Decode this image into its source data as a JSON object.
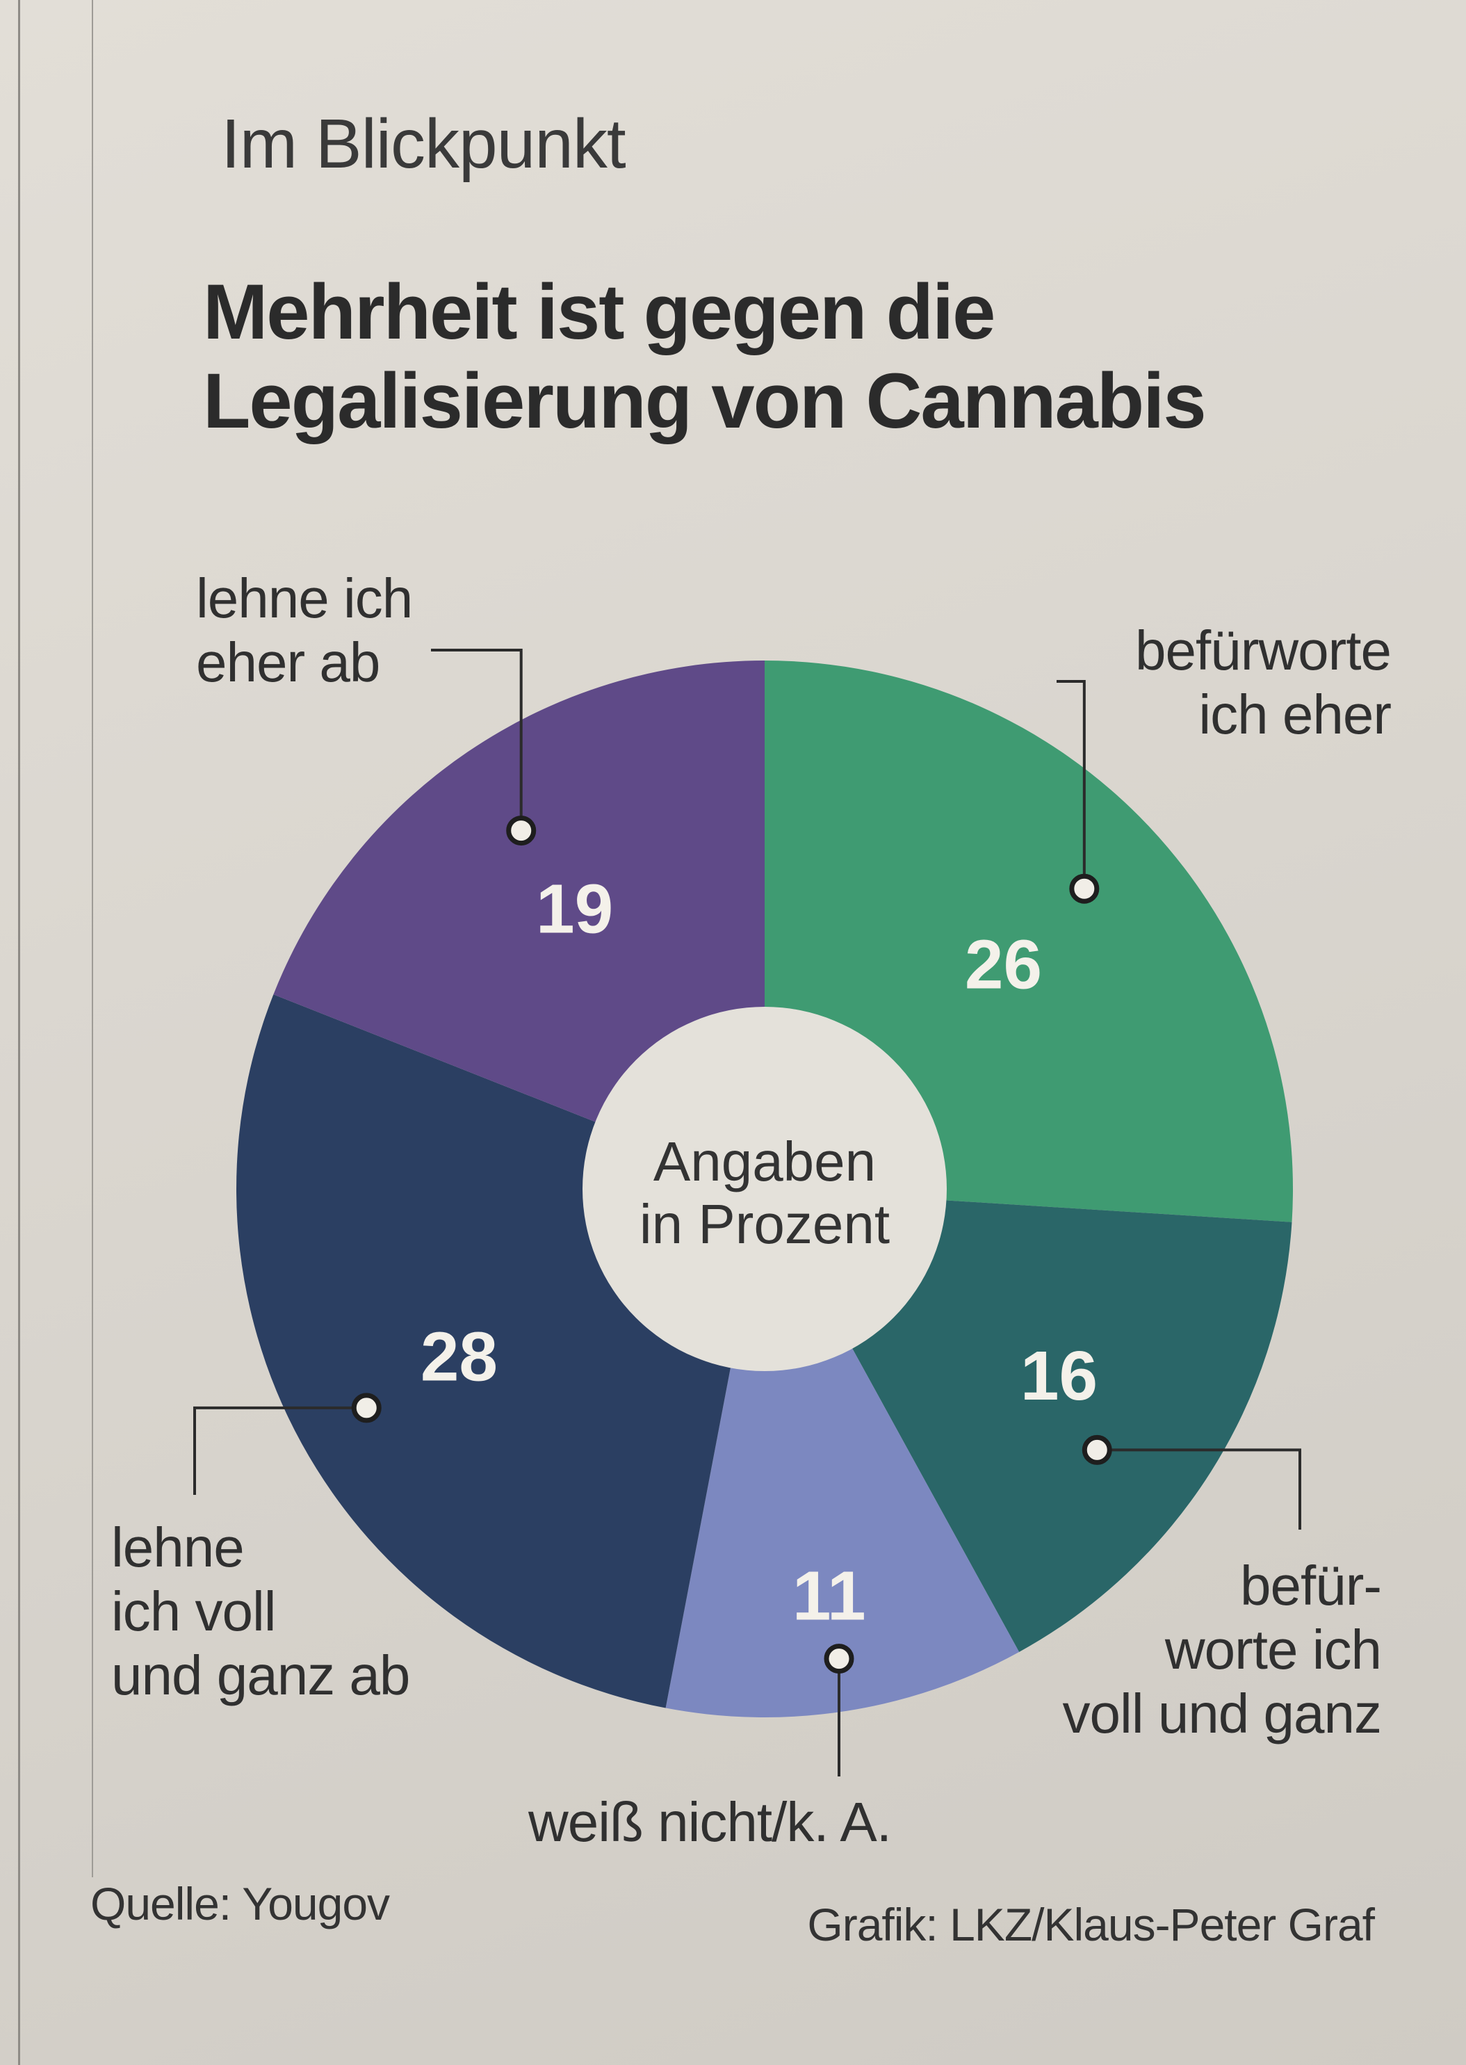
{
  "kicker": "Im Blickpunkt",
  "headline": {
    "line1": "Mehrheit ist gegen die",
    "line2": "Legalisierung von Cannabis"
  },
  "chart_data": {
    "type": "pie",
    "variant": "donut",
    "center_label": [
      "Angaben",
      "in Prozent"
    ],
    "slices": [
      {
        "label": "befürworte ich eher",
        "value": 26,
        "color": "#3f9b72"
      },
      {
        "label": "befürworte ich voll und ganz",
        "value": 16,
        "color": "#2a6668"
      },
      {
        "label": "weiß nicht/k. A.",
        "value": 11,
        "color": "#7c88c0"
      },
      {
        "label": "lehne ich voll und ganz ab",
        "value": 28,
        "color": "#2b3f62"
      },
      {
        "label": "lehne ich eher ab",
        "value": 19,
        "color": "#5f4a88"
      }
    ]
  },
  "labels": {
    "eher_ab": [
      "lehne ich",
      "eher ab"
    ],
    "befuerworte_eher": [
      "befürworte",
      "ich eher"
    ],
    "voll_ab": [
      "lehne",
      "ich voll",
      "und ganz ab"
    ],
    "befuerworte_voll": [
      "befür-",
      "worte ich",
      "voll und ganz"
    ],
    "weiss_nicht": "weiß nicht/k. A."
  },
  "footer": {
    "source": "Quelle: Yougov",
    "credit": "Grafik: LKZ/Klaus-Peter Graf"
  }
}
